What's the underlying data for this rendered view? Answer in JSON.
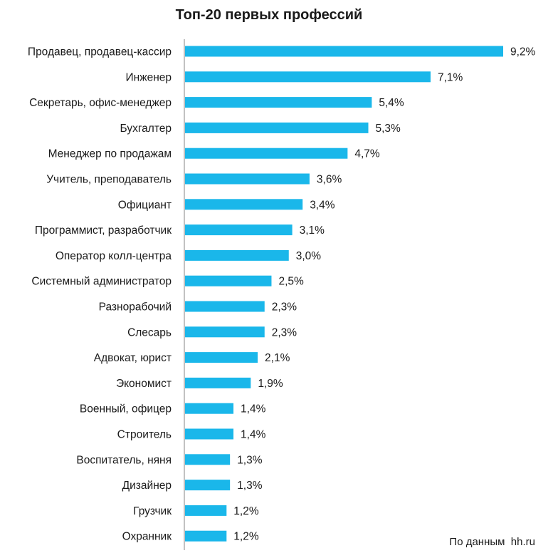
{
  "chart_data": {
    "type": "bar",
    "orientation": "horizontal",
    "title": "Топ-20 первых профессий",
    "categories": [
      "Продавец, продавец-кассир",
      "Инженер",
      "Секретарь, офис-менеджер",
      "Бухгалтер",
      "Менеджер по продажам",
      "Учитель, преподаватель",
      "Официант",
      "Программист, разработчик",
      "Оператор колл-центра",
      "Системный администратор",
      "Разнорабочий",
      "Слесарь",
      "Адвокат, юрист",
      "Экономист",
      "Военный, офицер",
      "Строитель",
      "Воспитатель, няня",
      "Дизайнер",
      "Грузчик",
      "Охранник"
    ],
    "values": [
      9.2,
      7.1,
      5.4,
      5.3,
      4.7,
      3.6,
      3.4,
      3.1,
      3.0,
      2.5,
      2.3,
      2.3,
      2.1,
      1.9,
      1.4,
      1.4,
      1.3,
      1.3,
      1.2,
      1.2
    ],
    "value_labels": [
      "9,2%",
      "7,1%",
      "5,4%",
      "5,3%",
      "4,7%",
      "3,6%",
      "3,4%",
      "3,1%",
      "3,0%",
      "2,5%",
      "2,3%",
      "2,3%",
      "2,1%",
      "1,9%",
      "1,4%",
      "1,4%",
      "1,3%",
      "1,3%",
      "1,2%",
      "1,2%"
    ],
    "unit": "%",
    "xlim": [
      0,
      9.2
    ],
    "grid": false,
    "legend": "none",
    "bar_color": "#1ab7ea",
    "axis_color": "#999999",
    "source_note": "По данным  hh.ru"
  }
}
